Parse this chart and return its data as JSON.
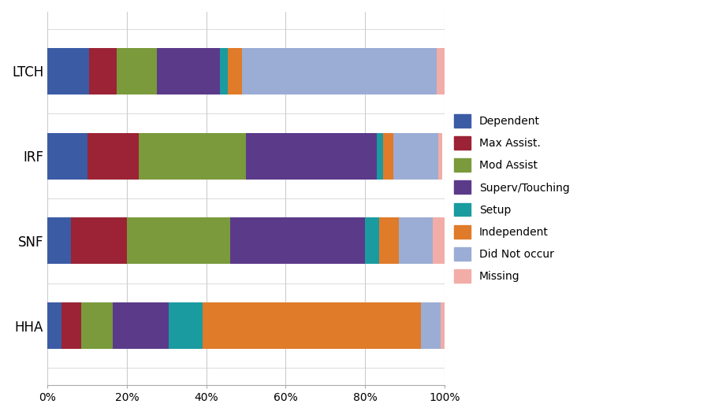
{
  "categories": [
    "LTCH",
    "IRF",
    "SNF",
    "HHA"
  ],
  "segments": {
    "Dependent": [
      10.5,
      10.0,
      6.0,
      3.5
    ],
    "Max Assist.": [
      7.0,
      13.0,
      14.0,
      5.0
    ],
    "Mod Assist": [
      10.0,
      27.0,
      26.0,
      8.0
    ],
    "Superv/Touching": [
      16.0,
      33.0,
      34.0,
      14.0
    ],
    "Setup": [
      2.0,
      1.5,
      3.5,
      8.5
    ],
    "Independent": [
      3.5,
      2.5,
      5.0,
      55.0
    ],
    "Did Not occur": [
      49.0,
      11.5,
      8.5,
      5.0
    ],
    "Missing": [
      2.0,
      1.0,
      3.0,
      1.0
    ]
  },
  "colors": {
    "Dependent": "#3B5BA5",
    "Max Assist.": "#9B2335",
    "Mod Assist": "#7A9A3C",
    "Superv/Touching": "#5B3A8A",
    "Setup": "#1A9BA0",
    "Independent": "#E07B2A",
    "Did Not occur": "#9BADD4",
    "Missing": "#F2ADA8"
  },
  "xlim": [
    0,
    100
  ],
  "xlabel_ticks": [
    0,
    20,
    40,
    60,
    80,
    100
  ],
  "xlabel_labels": [
    "0%",
    "20%",
    "40%",
    "60%",
    "80%",
    "100%"
  ],
  "bar_height": 0.55,
  "figure_bg": "#ffffff",
  "axes_bg": "#ffffff"
}
